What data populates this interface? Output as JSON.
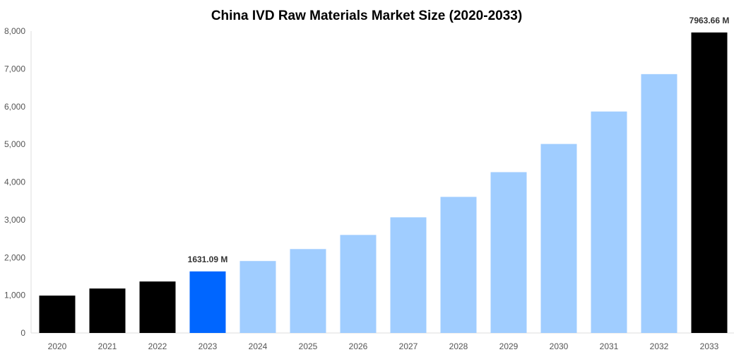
{
  "chart_data": {
    "type": "bar",
    "title": "China IVD Raw Materials Market Size (2020-2033)",
    "xlabel": "",
    "ylabel": "",
    "ylim": [
      0,
      8000
    ],
    "yticks": [
      0,
      1000,
      2000,
      3000,
      4000,
      5000,
      6000,
      7000,
      8000
    ],
    "ytick_labels": [
      "0",
      "1,000",
      "2,000",
      "3,000",
      "4,000",
      "5,000",
      "6,000",
      "7,000",
      "8,000"
    ],
    "grid": false,
    "categories": [
      "2020",
      "2021",
      "2022",
      "2023",
      "2024",
      "2025",
      "2026",
      "2027",
      "2028",
      "2029",
      "2030",
      "2031",
      "2032",
      "2033"
    ],
    "values": [
      990,
      1178,
      1364,
      1631.09,
      1907,
      2224,
      2598,
      3065,
      3607,
      4262,
      5009,
      5869,
      6860,
      7963.66
    ],
    "bar_colors": [
      "#000000",
      "#000000",
      "#000000",
      "#0066ff",
      "#a0cdff",
      "#a0cdff",
      "#a0cdff",
      "#a0cdff",
      "#a0cdff",
      "#a0cdff",
      "#a0cdff",
      "#a0cdff",
      "#a0cdff",
      "#000000"
    ],
    "data_labels": [
      {
        "category": "2023",
        "text": "1631.09 M"
      },
      {
        "category": "2033",
        "text": "7963.66 M"
      }
    ]
  }
}
